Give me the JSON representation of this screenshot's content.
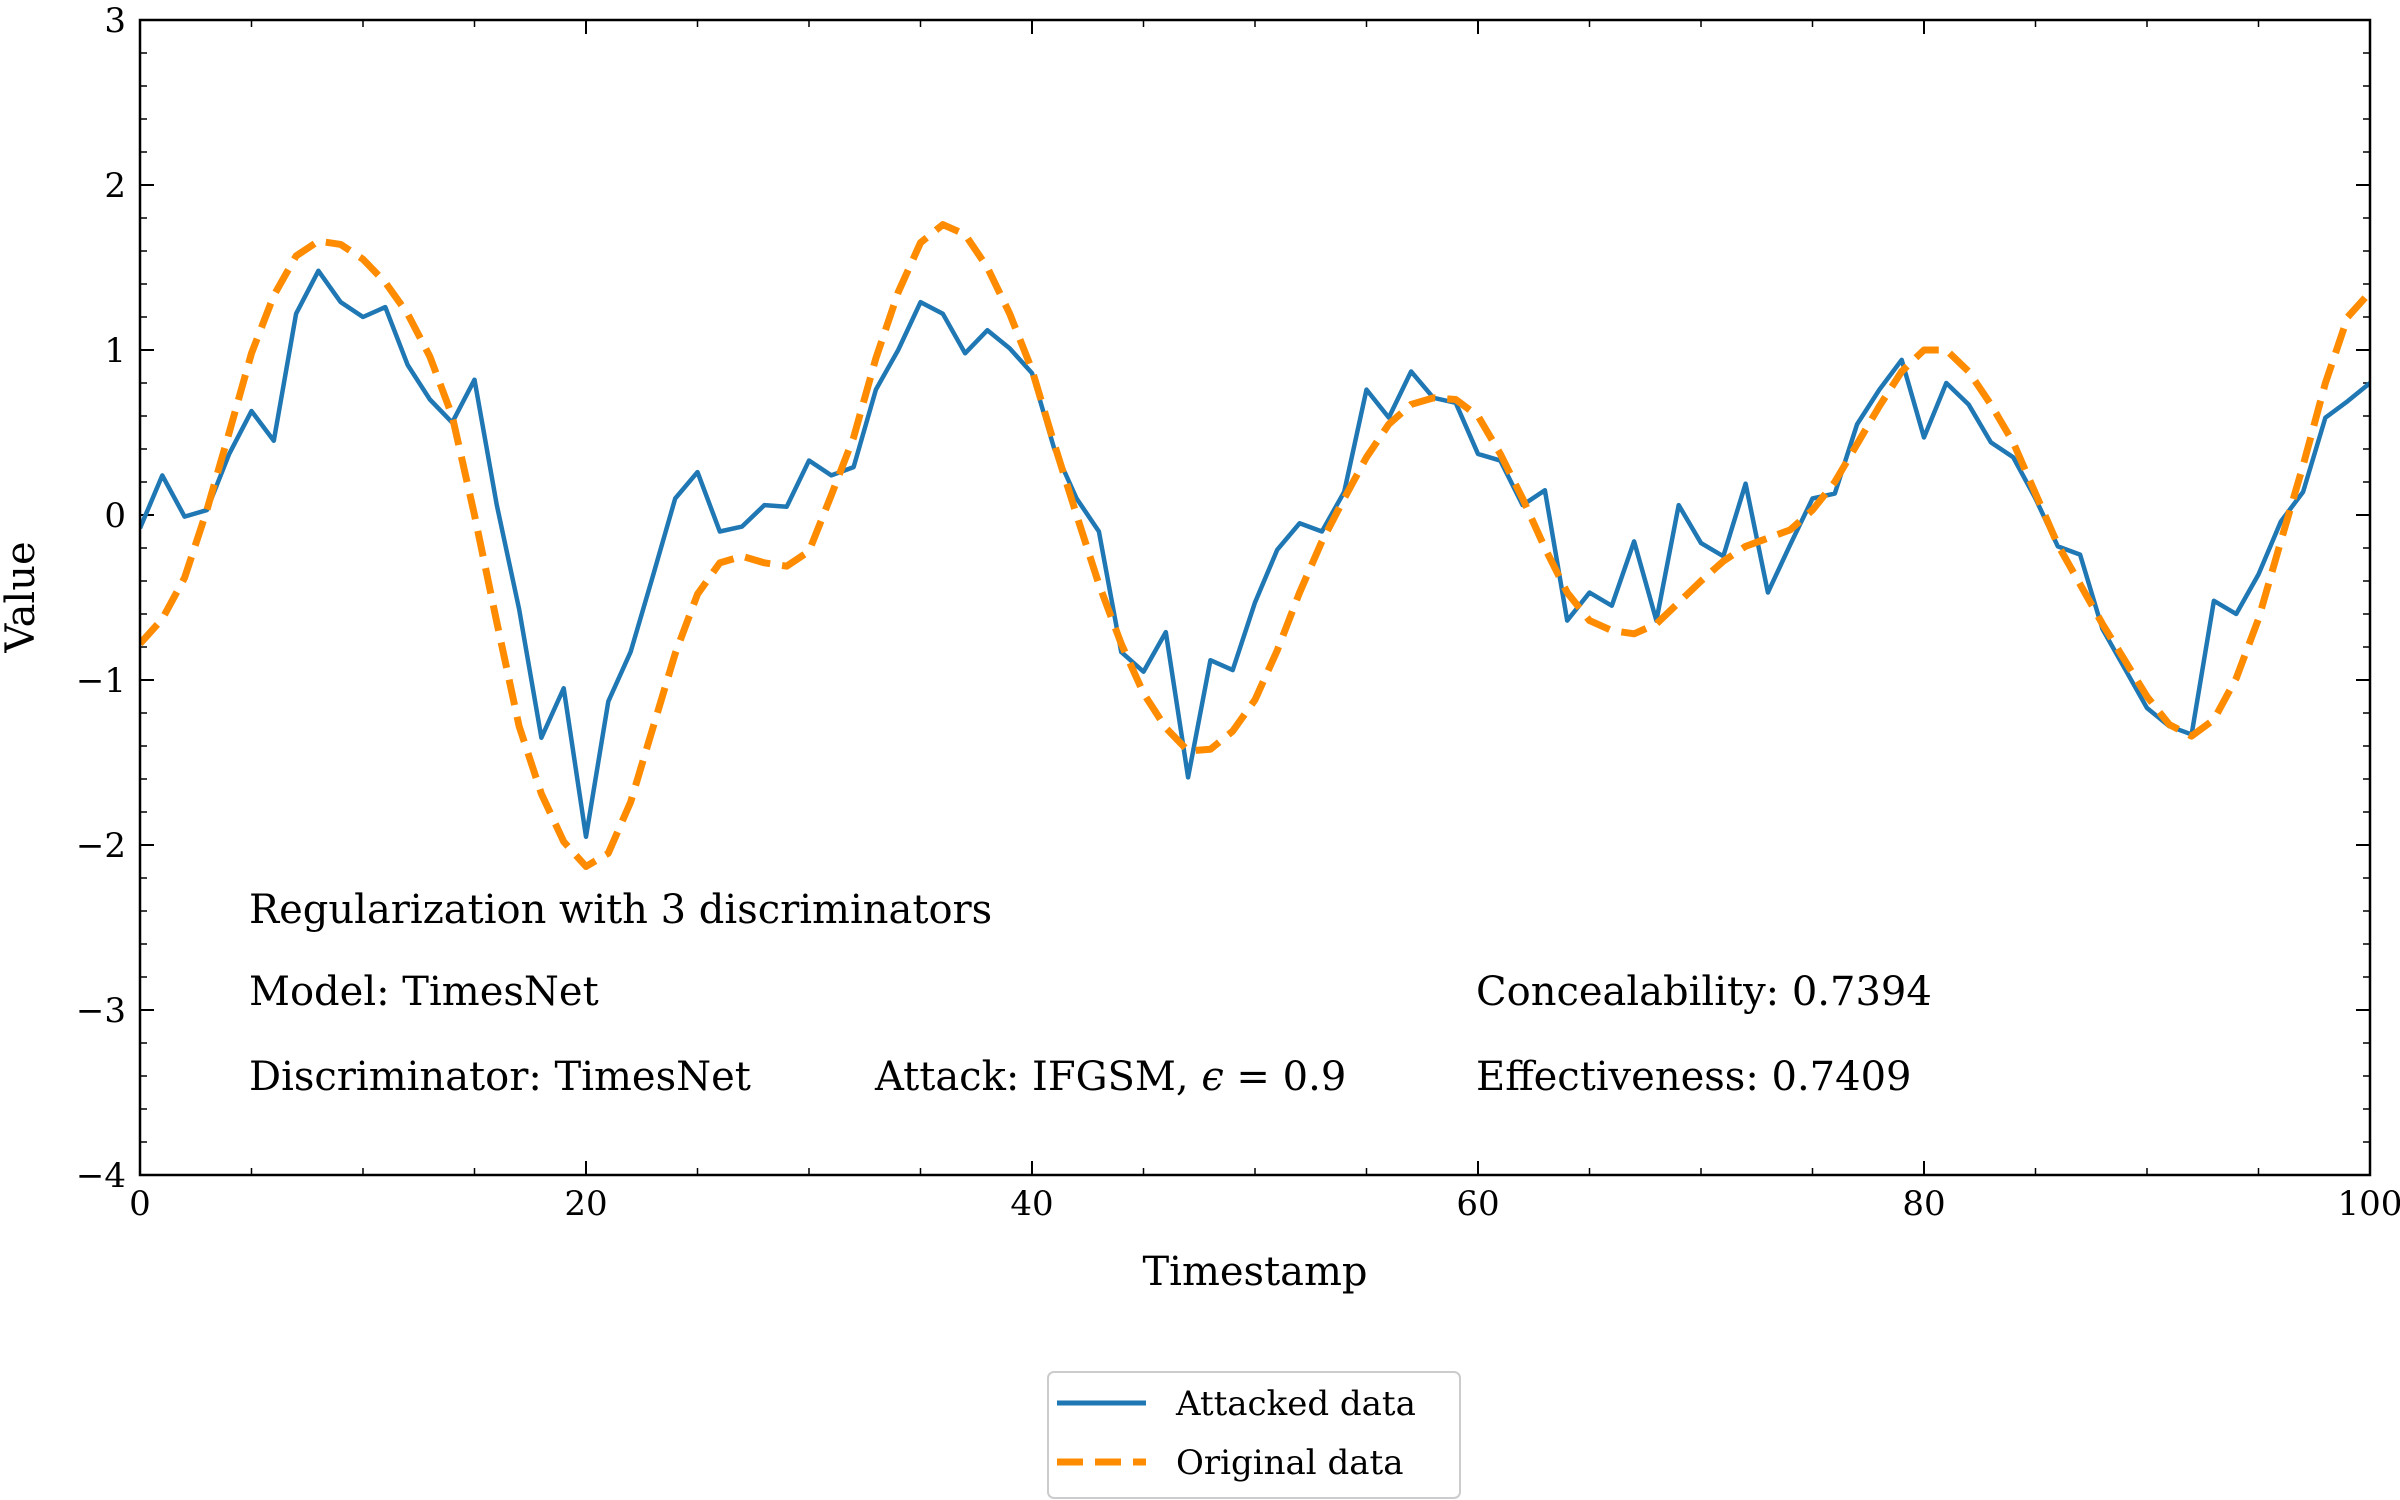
{
  "chart_data": {
    "type": "line",
    "xlabel": "Timestamp",
    "ylabel": "Value",
    "xlim": [
      0,
      100
    ],
    "ylim": [
      -4,
      3
    ],
    "xticks": [
      0,
      20,
      40,
      60,
      80,
      100
    ],
    "yticks": [
      -4,
      -3,
      -2,
      -1,
      0,
      1,
      2,
      3
    ],
    "ytick_labels": [
      "−4",
      "−3",
      "−2",
      "−1",
      "0",
      "1",
      "2",
      "3"
    ],
    "grid": false,
    "legend_position": "bottom-center-outside",
    "series": [
      {
        "name": "Attacked data",
        "color": "#1f77b4",
        "style": "solid",
        "x": [
          0,
          1,
          2,
          3,
          4,
          5,
          6,
          7,
          8,
          9,
          10,
          11,
          12,
          13,
          14,
          15,
          16,
          17,
          18,
          19,
          20,
          21,
          22,
          23,
          24,
          25,
          26,
          27,
          28,
          29,
          30,
          31,
          32,
          33,
          34,
          35,
          36,
          37,
          38,
          39,
          40,
          41,
          42,
          43,
          44,
          45,
          46,
          47,
          48,
          49,
          50,
          51,
          52,
          53,
          54,
          55,
          56,
          57,
          58,
          59,
          60,
          61,
          62,
          63,
          64,
          65,
          66,
          67,
          68,
          69,
          70,
          71,
          72,
          73,
          74,
          75,
          76,
          77,
          78,
          79,
          80,
          81,
          82,
          83,
          84,
          85,
          86,
          87,
          88,
          89,
          90,
          91,
          92,
          93,
          94,
          95,
          96,
          97,
          98,
          99,
          100
        ],
        "y": [
          -0.08,
          0.24,
          -0.01,
          0.03,
          0.37,
          0.63,
          0.45,
          1.22,
          1.48,
          1.29,
          1.2,
          1.26,
          0.91,
          0.7,
          0.56,
          0.82,
          0.06,
          -0.57,
          -1.35,
          -1.05,
          -1.95,
          -1.13,
          -0.83,
          -0.37,
          0.1,
          0.26,
          -0.1,
          -0.07,
          0.06,
          0.05,
          0.33,
          0.24,
          0.29,
          0.76,
          1.0,
          1.29,
          1.22,
          0.98,
          1.12,
          1.01,
          0.86,
          0.4,
          0.1,
          -0.1,
          -0.83,
          -0.95,
          -0.71,
          -1.59,
          -0.88,
          -0.94,
          -0.53,
          -0.21,
          -0.05,
          -0.1,
          0.14,
          0.76,
          0.59,
          0.87,
          0.71,
          0.68,
          0.37,
          0.33,
          0.06,
          0.15,
          -0.64,
          -0.47,
          -0.55,
          -0.16,
          -0.64,
          0.06,
          -0.17,
          -0.25,
          0.19,
          -0.47,
          -0.18,
          0.1,
          0.13,
          0.55,
          0.76,
          0.94,
          0.47,
          0.8,
          0.67,
          0.44,
          0.35,
          0.1,
          -0.19,
          -0.24,
          -0.69,
          -0.93,
          -1.17,
          -1.28,
          -1.33,
          -0.52,
          -0.6,
          -0.36,
          -0.04,
          0.14,
          0.59,
          0.69,
          0.8
        ]
      },
      {
        "name": "Original data",
        "color": "#ff8c00",
        "style": "dashed",
        "x": [
          0,
          1,
          2,
          3,
          4,
          5,
          6,
          7,
          8,
          9,
          10,
          11,
          12,
          13,
          14,
          15,
          16,
          17,
          18,
          19,
          20,
          21,
          22,
          23,
          24,
          25,
          26,
          27,
          28,
          29,
          30,
          31,
          32,
          33,
          34,
          35,
          36,
          37,
          38,
          39,
          40,
          41,
          42,
          43,
          44,
          45,
          46,
          47,
          48,
          49,
          50,
          51,
          52,
          53,
          54,
          55,
          56,
          57,
          58,
          59,
          60,
          61,
          62,
          63,
          64,
          65,
          66,
          67,
          68,
          69,
          70,
          71,
          72,
          73,
          74,
          75,
          76,
          77,
          78,
          79,
          80,
          81,
          82,
          83,
          84,
          85,
          86,
          87,
          88,
          89,
          90,
          91,
          92,
          93,
          94,
          95,
          96,
          97,
          98,
          99,
          100
        ],
        "y": [
          -0.78,
          -0.63,
          -0.38,
          0.03,
          0.5,
          0.98,
          1.33,
          1.57,
          1.66,
          1.64,
          1.55,
          1.41,
          1.22,
          0.96,
          0.6,
          0.0,
          -0.65,
          -1.28,
          -1.69,
          -1.98,
          -2.13,
          -2.05,
          -1.74,
          -1.29,
          -0.84,
          -0.48,
          -0.29,
          -0.25,
          -0.29,
          -0.31,
          -0.22,
          0.12,
          0.47,
          0.95,
          1.35,
          1.65,
          1.76,
          1.7,
          1.5,
          1.22,
          0.88,
          0.43,
          0.0,
          -0.42,
          -0.78,
          -1.08,
          -1.29,
          -1.43,
          -1.42,
          -1.31,
          -1.12,
          -0.82,
          -0.47,
          -0.16,
          0.1,
          0.35,
          0.55,
          0.67,
          0.71,
          0.7,
          0.6,
          0.37,
          0.1,
          -0.2,
          -0.47,
          -0.64,
          -0.7,
          -0.72,
          -0.66,
          -0.53,
          -0.4,
          -0.28,
          -0.19,
          -0.14,
          -0.09,
          0.03,
          0.2,
          0.43,
          0.66,
          0.87,
          1.0,
          1.0,
          0.87,
          0.67,
          0.44,
          0.13,
          -0.18,
          -0.42,
          -0.66,
          -0.88,
          -1.1,
          -1.27,
          -1.34,
          -1.24,
          -0.99,
          -0.63,
          -0.16,
          0.3,
          0.8,
          1.2,
          1.35
        ]
      }
    ],
    "annotations": {
      "title_line": "Regularization with 3 discriminators",
      "model": "Model: TimesNet",
      "discriminator": "Discriminator: TimesNet",
      "attack_prefix": "Attack: IFGSM, ",
      "attack_symbol": "ϵ",
      "attack_suffix": " = 0.9",
      "concealability": "Concealability: 0.7394",
      "effectiveness": "Effectiveness: 0.7409"
    }
  }
}
